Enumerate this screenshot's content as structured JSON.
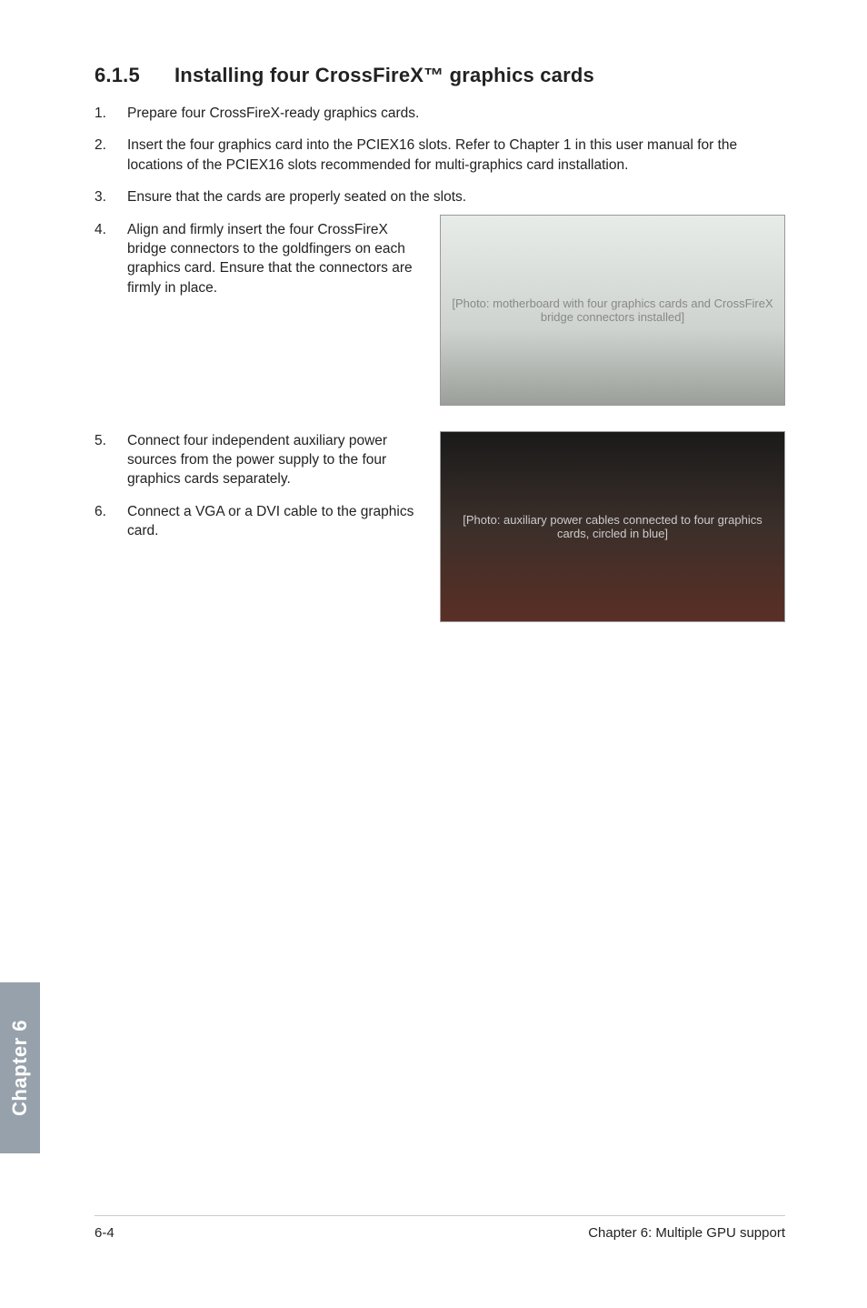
{
  "section": {
    "number": "6.1.5",
    "title": "Installing four CrossFireX™ graphics cards"
  },
  "steps": {
    "s1": {
      "num": "1.",
      "text": "Prepare four CrossFireX-ready graphics cards."
    },
    "s2": {
      "num": "2.",
      "text": "Insert the four graphics card into the PCIEX16 slots. Refer to Chapter 1 in this user manual for the locations of the PCIEX16 slots recommended for multi-graphics card installation."
    },
    "s3": {
      "num": "3.",
      "text": "Ensure that the cards are properly seated on the slots."
    },
    "s4": {
      "num": "4.",
      "text": "Align and firmly insert the four CrossFireX bridge connectors to the goldfingers on each graphics card. Ensure that the connectors are firmly in place."
    },
    "s5": {
      "num": "5.",
      "text": "Connect four independent auxiliary power sources from the power supply to the four graphics cards separately."
    },
    "s6": {
      "num": "6.",
      "text": "Connect a VGA or a DVI cable to the graphics card."
    }
  },
  "images": {
    "img1_alt": "[Photo: motherboard with four graphics cards and CrossFireX bridge connectors installed]",
    "img2_alt": "[Photo: auxiliary power cables connected to four graphics cards, circled in blue]"
  },
  "tab": {
    "label": "Chapter 6"
  },
  "footer": {
    "page": "6-4",
    "chapter": "Chapter 6: Multiple GPU support"
  }
}
